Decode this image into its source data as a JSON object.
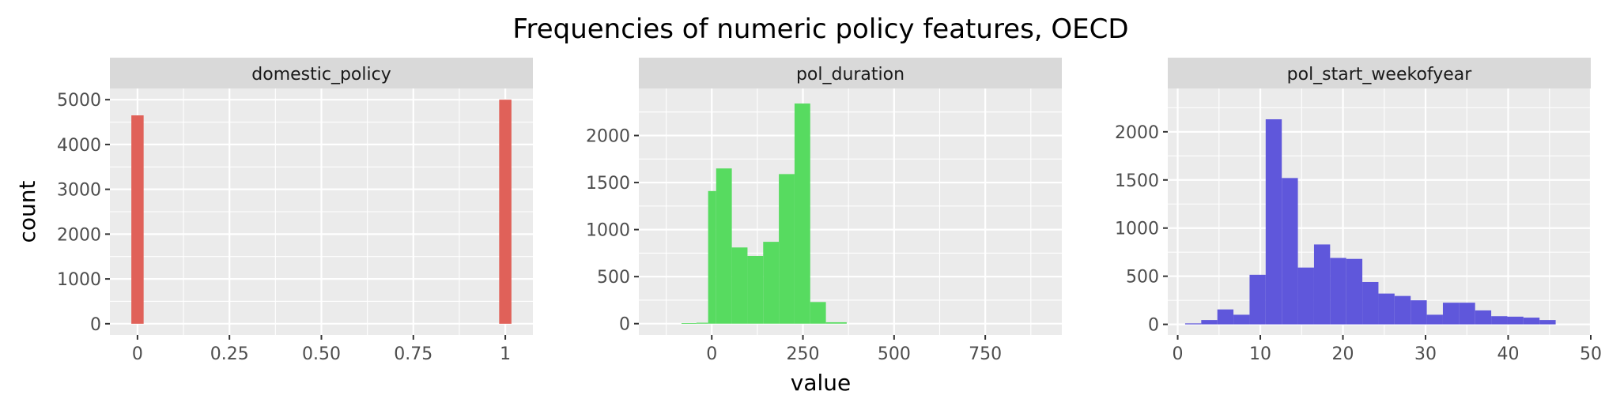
{
  "figure": {
    "title": "Frequencies of numeric policy features, OECD",
    "xlabel": "value",
    "ylabel": "count"
  },
  "chart_data": [
    {
      "type": "bar",
      "facet": "domestic_policy",
      "color": "#E06159",
      "xlim": [
        -0.075,
        1.075
      ],
      "ylim": [
        -250,
        5250
      ],
      "xticks": [
        0,
        0.25,
        0.5,
        0.75,
        1
      ],
      "xtick_labels": [
        "0",
        "0.25",
        "0.50",
        "0.75",
        "1"
      ],
      "yticks": [
        0,
        1000,
        2000,
        3000,
        4000,
        5000
      ],
      "ytick_labels": [
        "0",
        "1000",
        "2000",
        "3000",
        "4000",
        "5000"
      ],
      "bins": [
        {
          "x0": -0.0167,
          "x1": 0.0167,
          "count": 4650
        },
        {
          "x0": 0.9833,
          "x1": 1.0167,
          "count": 5000
        }
      ]
    },
    {
      "type": "bar",
      "facet": "pol_duration",
      "color": "#57DB60",
      "xlim": [
        -200,
        960
      ],
      "ylim": [
        -120,
        2500
      ],
      "xticks": [
        0,
        250,
        500,
        750
      ],
      "xtick_labels": [
        "0",
        "250",
        "500",
        "750"
      ],
      "yticks": [
        0,
        500,
        1000,
        1500,
        2000
      ],
      "ytick_labels": [
        "0",
        "500",
        "1000",
        "1500",
        "2000"
      ],
      "bins": [
        {
          "x0": -125,
          "x1": -83,
          "count": 0
        },
        {
          "x0": -83,
          "x1": -42,
          "count": 5
        },
        {
          "x0": -42,
          "x1": -10,
          "count": 10
        },
        {
          "x0": -10,
          "x1": 12,
          "count": 1410
        },
        {
          "x0": 12,
          "x1": 55,
          "count": 1650
        },
        {
          "x0": 55,
          "x1": 98,
          "count": 810
        },
        {
          "x0": 98,
          "x1": 141,
          "count": 720
        },
        {
          "x0": 141,
          "x1": 184,
          "count": 870
        },
        {
          "x0": 184,
          "x1": 227,
          "count": 1590
        },
        {
          "x0": 227,
          "x1": 270,
          "count": 2340
        },
        {
          "x0": 270,
          "x1": 313,
          "count": 230
        },
        {
          "x0": 313,
          "x1": 370,
          "count": 15
        }
      ]
    },
    {
      "type": "bar",
      "facet": "pol_start_weekofyear",
      "color": "#5F57DB",
      "xlim": [
        -1.2,
        50
      ],
      "ylim": [
        -110,
        2450
      ],
      "xticks": [
        0,
        10,
        20,
        30,
        40,
        50
      ],
      "xtick_labels": [
        "0",
        "10",
        "20",
        "30",
        "40",
        "50"
      ],
      "yticks": [
        0,
        500,
        1000,
        1500,
        2000
      ],
      "ytick_labels": [
        "0",
        "500",
        "1000",
        "1500",
        "2000"
      ],
      "bins": [
        {
          "x0": 0.9,
          "x1": 2.85,
          "count": 10
        },
        {
          "x0": 2.85,
          "x1": 4.8,
          "count": 45
        },
        {
          "x0": 4.8,
          "x1": 6.75,
          "count": 155
        },
        {
          "x0": 6.75,
          "x1": 8.7,
          "count": 100
        },
        {
          "x0": 8.7,
          "x1": 10.65,
          "count": 515
        },
        {
          "x0": 10.65,
          "x1": 12.6,
          "count": 2130
        },
        {
          "x0": 12.6,
          "x1": 14.55,
          "count": 1520
        },
        {
          "x0": 14.55,
          "x1": 16.5,
          "count": 590
        },
        {
          "x0": 16.5,
          "x1": 18.45,
          "count": 830
        },
        {
          "x0": 18.45,
          "x1": 20.4,
          "count": 690
        },
        {
          "x0": 20.4,
          "x1": 22.35,
          "count": 680
        },
        {
          "x0": 22.35,
          "x1": 24.3,
          "count": 440
        },
        {
          "x0": 24.3,
          "x1": 26.25,
          "count": 320
        },
        {
          "x0": 26.25,
          "x1": 28.2,
          "count": 295
        },
        {
          "x0": 28.2,
          "x1": 30.15,
          "count": 250
        },
        {
          "x0": 30.15,
          "x1": 32.1,
          "count": 100
        },
        {
          "x0": 32.1,
          "x1": 34.05,
          "count": 225
        },
        {
          "x0": 34.05,
          "x1": 36.0,
          "count": 225
        },
        {
          "x0": 36.0,
          "x1": 37.95,
          "count": 145
        },
        {
          "x0": 37.95,
          "x1": 39.9,
          "count": 85
        },
        {
          "x0": 39.9,
          "x1": 41.85,
          "count": 80
        },
        {
          "x0": 41.85,
          "x1": 43.8,
          "count": 70
        },
        {
          "x0": 43.8,
          "x1": 45.75,
          "count": 45
        }
      ]
    }
  ]
}
